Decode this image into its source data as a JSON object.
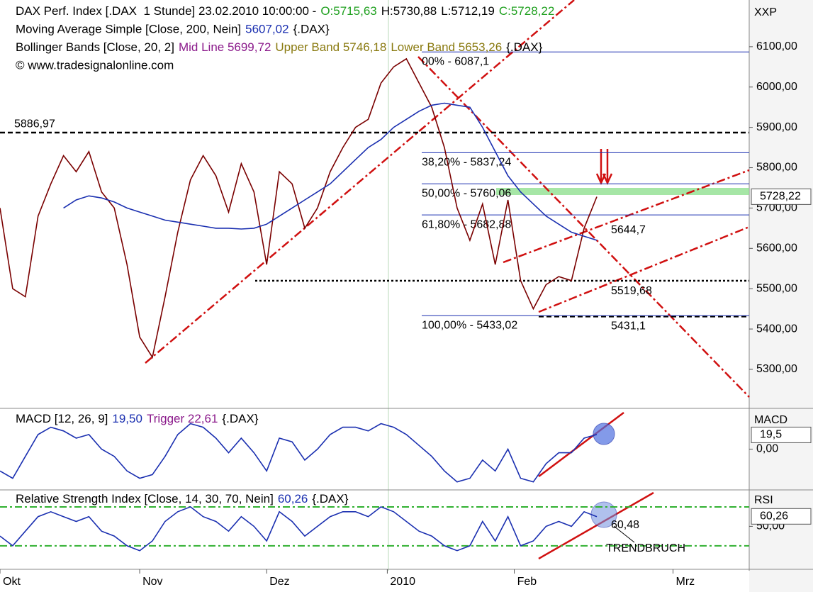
{
  "chart_data": {
    "type": "line",
    "x": [
      0,
      2,
      4,
      6,
      8,
      10,
      12,
      14,
      16,
      18,
      20,
      22,
      24,
      26,
      28,
      30,
      32,
      34,
      36,
      38,
      40,
      42,
      44,
      46,
      48,
      50,
      52,
      54,
      56,
      58,
      60,
      62,
      64,
      66,
      68,
      70,
      72,
      74,
      76,
      78,
      80,
      82,
      84,
      86,
      88,
      90,
      92,
      94
    ],
    "xlim": [
      0,
      118
    ],
    "xticks": [
      {
        "value": 0,
        "label": "Okt"
      },
      {
        "value": 22,
        "label": "Nov"
      },
      {
        "value": 42,
        "label": "Dez"
      },
      {
        "value": 61,
        "label": "2010"
      },
      {
        "value": 81,
        "label": "Feb"
      },
      {
        "value": 106,
        "label": "Mrz"
      }
    ],
    "panels": [
      {
        "axis_title": "XXP",
        "header": [
          [
            {
              "text": "DAX Perf. Index [.DAX  1 Stunde] 23.02.2010 10:00:00 -",
              "color": "#000000"
            },
            {
              "text": "O:5715,63",
              "color": "#1fa01f"
            },
            {
              "text": "H:5730,88",
              "color": "#000000"
            },
            {
              "text": "L:5712,19",
              "color": "#000000"
            },
            {
              "text": "C:5728,22",
              "color": "#1fa01f"
            }
          ],
          [
            {
              "text": "Moving Average Simple [Close, 200, Nein]",
              "color": "#000000"
            },
            {
              "text": "5607,02",
              "color": "#1a2fb0"
            },
            {
              "text": "{.DAX}",
              "color": "#000000"
            }
          ],
          [
            {
              "text": "Bollinger Bands [Close, 20, 2]",
              "color": "#000000"
            },
            {
              "text": "Mid Line 5699,72",
              "color": "#8b1a8b"
            },
            {
              "text": "Upper Band 5746,18",
              "color": "#8a7a10"
            },
            {
              "text": "Lower Band 5653,26",
              "color": "#8a7a10"
            },
            {
              "text": "{.DAX}",
              "color": "#000000"
            }
          ],
          [
            {
              "text": "© www.tradesignalonline.com",
              "color": "#000000"
            }
          ]
        ],
        "ylim": [
          5205,
          6207
        ],
        "yticks": [
          {
            "value": 5300,
            "label": "5300,00"
          },
          {
            "value": 5400,
            "label": "5400,00"
          },
          {
            "value": 5500,
            "label": "5500,00"
          },
          {
            "value": 5600,
            "label": "5600,00"
          },
          {
            "value": 5700,
            "label": "5700,00"
          },
          {
            "value": 5800,
            "label": "5800,00"
          },
          {
            "value": 5900,
            "label": "5900,00"
          },
          {
            "value": 6000,
            "label": "6000,00"
          },
          {
            "value": 6100,
            "label": "6100,00"
          }
        ],
        "tag": {
          "value": 5728.22,
          "label": "5728,22"
        },
        "series": [
          {
            "color": "#7a0000",
            "values": [
              5700,
              5500,
              5480,
              5680,
              5760,
              5830,
              5790,
              5840,
              5740,
              5700,
              5560,
              5380,
              5330,
              5480,
              5640,
              5770,
              5830,
              5780,
              5690,
              5810,
              5740,
              5560,
              5790,
              5760,
              5650,
              5700,
              5790,
              5850,
              5900,
              5920,
              6010,
              6050,
              6070,
              6010,
              5950,
              5850,
              5700,
              5620,
              5710,
              5560,
              5720,
              5520,
              5450,
              5510,
              5530,
              5520,
              5650,
              5728
            ]
          },
          {
            "color": "#1a2fb0",
            "values": [
              null,
              null,
              null,
              null,
              null,
              5700,
              5720,
              5730,
              5725,
              5715,
              5700,
              5690,
              5680,
              5670,
              5665,
              5660,
              5655,
              5650,
              5650,
              5648,
              5650,
              5660,
              5680,
              5700,
              5720,
              5740,
              5760,
              5790,
              5820,
              5850,
              5870,
              5900,
              5920,
              5940,
              5955,
              5960,
              5955,
              5950,
              5900,
              5840,
              5780,
              5740,
              5710,
              5680,
              5660,
              5640,
              5630,
              5620
            ]
          }
        ],
        "levels": [
          {
            "value": 5886.97,
            "label": "5886,97",
            "color": "#000000",
            "style": "dash"
          },
          {
            "value": 5519.68,
            "label": "5519,68",
            "color": "#000000",
            "style": "dot"
          },
          {
            "value": 5431.1,
            "label": "5431,1",
            "color": "#000000",
            "style": "dash"
          },
          {
            "value": 6087.1,
            "label": "00% - 6087,1",
            "color": "#1a2fb0",
            "style": "fib"
          },
          {
            "value": 5837.24,
            "label": "38,20% - 5837,24",
            "color": "#1a2fb0",
            "style": "fib"
          },
          {
            "value": 5760.06,
            "label": "50,00% - 5760,06",
            "color": "#1a2fb0",
            "style": "fib"
          },
          {
            "value": 5682.88,
            "label": "61,80% - 5682,88",
            "color": "#1a2fb0",
            "style": "fib"
          },
          {
            "value": 5433.02,
            "label": "100,00% - 5433,02",
            "color": "#1a2fb0",
            "style": "fib"
          },
          {
            "value": 5644.7,
            "label": "5644,7",
            "color": "#d01010",
            "style": "text"
          }
        ]
      },
      {
        "axis_title": "MACD",
        "header": [
          [
            {
              "text": "MACD [12, 26, 9]",
              "color": "#000000"
            },
            {
              "text": "19,50",
              "color": "#1a2fb0"
            },
            {
              "text": "Trigger 22,61",
              "color": "#8b1a8b"
            },
            {
              "text": "{.DAX}",
              "color": "#000000"
            }
          ]
        ],
        "ylim": [
          -55,
          52
        ],
        "yticks": [
          {
            "value": 0,
            "label": "0,00"
          }
        ],
        "tag": {
          "value": 19.5,
          "label": "19,5"
        },
        "series": [
          {
            "color": "#1a2fb0",
            "values": [
              -30,
              -40,
              -10,
              20,
              30,
              25,
              15,
              20,
              0,
              -10,
              -30,
              -40,
              -35,
              -10,
              20,
              35,
              30,
              15,
              -5,
              15,
              -5,
              -30,
              15,
              10,
              -15,
              0,
              20,
              30,
              30,
              25,
              35,
              30,
              20,
              5,
              -10,
              -30,
              -45,
              -40,
              -15,
              -30,
              0,
              -40,
              -45,
              -20,
              -5,
              -5,
              15,
              20
            ]
          }
        ]
      },
      {
        "axis_title": "RSI",
        "header": [
          [
            {
              "text": "Relative Strength Index [Close, 14, 30, 70, Nein]",
              "color": "#000000"
            },
            {
              "text": "60,26",
              "color": "#1a2fb0"
            },
            {
              "text": "{.DAX}",
              "color": "#000000"
            }
          ]
        ],
        "ylim": [
          8,
          86
        ],
        "yticks": [
          {
            "value": 50,
            "label": "50,00"
          }
        ],
        "tag": {
          "value": 60.26,
          "label": "60,26"
        },
        "rsi_levels": [
          30,
          70
        ],
        "series": [
          {
            "color": "#1a2fb0",
            "values": [
              40,
              30,
              45,
              60,
              65,
              60,
              55,
              60,
              45,
              40,
              30,
              25,
              35,
              55,
              65,
              70,
              60,
              55,
              45,
              60,
              50,
              35,
              65,
              55,
              40,
              50,
              60,
              65,
              65,
              60,
              70,
              65,
              55,
              45,
              40,
              30,
              25,
              30,
              55,
              35,
              60,
              30,
              35,
              50,
              55,
              50,
              65,
              60
            ]
          }
        ],
        "annotations": [
          "60,48",
          "TRENDBRUCH"
        ]
      }
    ]
  }
}
